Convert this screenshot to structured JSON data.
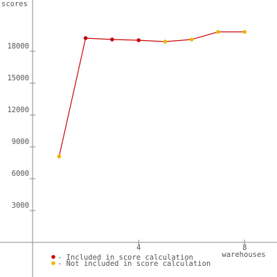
{
  "chart_data": {
    "type": "line",
    "y_label": "scores",
    "x_label": "warehouses",
    "x": [
      1,
      2,
      3,
      4,
      5,
      6,
      7,
      8
    ],
    "values": [
      8090,
      19240,
      19110,
      19040,
      18910,
      19110,
      19830,
      19830
    ],
    "line_color": "#cc0000",
    "point_colors": [
      "#f0b400",
      "#cc0000",
      "#cc0000",
      "#cc0000",
      "#f0b400",
      "#f0b400",
      "#f0b400",
      "#f0b400"
    ],
    "xlim": [
      -1.23,
      9.22
    ],
    "xticks": [
      4,
      8
    ],
    "ylim": [
      -3260,
      22830
    ],
    "yticks": [
      3000,
      6000,
      9000,
      12000,
      15000,
      18000
    ],
    "legend": [
      {
        "label": "- Included in score calculation",
        "color": "#cc0000"
      },
      {
        "label": "- Not included in score calculation",
        "color": "#f0b400"
      }
    ]
  }
}
